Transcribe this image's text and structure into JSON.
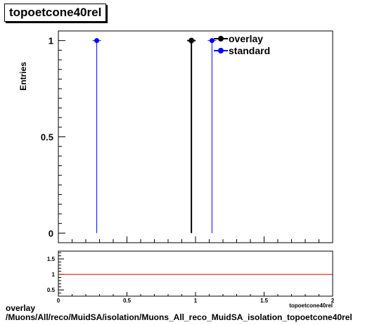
{
  "title": "topoetcone40rel",
  "footer": {
    "line1": "overlay",
    "line2": "/Muons/All/reco/MuidSA/isolation/Muons_All_reco_MuidSA_isolation_topoetcone40rel"
  },
  "colors": {
    "overlay": "#000000",
    "standard": "#0000ff",
    "ratio_line": "#cc0000"
  },
  "chart_data": [
    {
      "type": "scatter",
      "title": "topoetcone40rel",
      "ylabel": "Entries",
      "xlabel": "topoetcone40rel",
      "xlim": [
        0,
        2
      ],
      "ylim": [
        -0.05,
        1.05
      ],
      "yticks": [
        {
          "value": 0,
          "label": "0"
        },
        {
          "value": 0.5,
          "label": "0.5"
        },
        {
          "value": 1,
          "label": "1"
        }
      ],
      "legend": {
        "placement": "top-right"
      },
      "series": [
        {
          "name": "overlay",
          "color": "#000000",
          "points": [
            {
              "x": 0.97,
              "y": 1
            }
          ]
        },
        {
          "name": "standard",
          "color": "#0000ff",
          "points": [
            {
              "x": 0.28,
              "y": 1
            },
            {
              "x": 1.12,
              "y": 1
            }
          ]
        }
      ]
    },
    {
      "type": "line",
      "xlim": [
        0,
        2
      ],
      "ylim": [
        0.3,
        1.75
      ],
      "xticks": [
        {
          "value": 0,
          "label": "0"
        },
        {
          "value": 0.5,
          "label": "0.5"
        },
        {
          "value": 1,
          "label": "1"
        },
        {
          "value": 1.5,
          "label": "1.5"
        },
        {
          "value": 2,
          "label": "2"
        }
      ],
      "yticks": [
        {
          "value": 0.5,
          "label": "0.5"
        },
        {
          "value": 1,
          "label": "1"
        },
        {
          "value": 1.5,
          "label": "1.5"
        }
      ],
      "reference_line": 1
    }
  ]
}
